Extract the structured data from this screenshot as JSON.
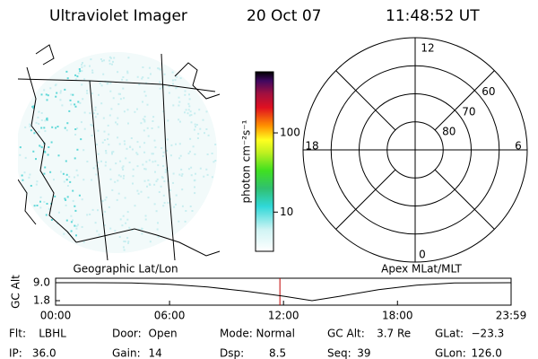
{
  "header": {
    "instrument": "Ultraviolet Imager",
    "date": "20 Oct 07",
    "time": "11:48:52 UT"
  },
  "colorbar": {
    "label": "photon cm⁻²s⁻¹",
    "log": true,
    "lim": [
      3.2,
      590
    ],
    "ticks": [
      10,
      100
    ]
  },
  "polar": {
    "rlim": [
      90,
      50
    ],
    "rings": [
      60,
      70,
      80
    ],
    "mlt_labels": [
      "12",
      "18",
      "6",
      "0"
    ]
  },
  "panel_labels": {
    "left": "Geographic Lat/Lon",
    "right": "Apex MLat/MLT"
  },
  "altitude": {
    "ylabel": "GC Alt",
    "x": [
      0,
      2,
      4,
      6,
      8,
      10,
      12,
      13.5,
      15,
      17,
      19,
      21,
      23.983
    ],
    "values": [
      9.0,
      9.0,
      8.9,
      8.4,
      7.3,
      5.6,
      3.6,
      1.8,
      3.6,
      6.2,
      8.0,
      8.9,
      9.0
    ],
    "xlim": [
      0,
      23.983
    ],
    "xticks": [
      {
        "value": 0,
        "label": "00:00"
      },
      {
        "value": 6,
        "label": "06:00"
      },
      {
        "value": 12,
        "label": "12:00"
      },
      {
        "value": 18,
        "label": "18:00"
      },
      {
        "value": 23.983,
        "label": "23:59"
      }
    ],
    "ylim": [
      1.8,
      9.0
    ],
    "yticks": [
      {
        "value": 9,
        "label": "9.0"
      },
      1.8
    ],
    "marker_x": 11.81,
    "marker_color": "#c00000",
    "color": "#000000"
  },
  "status": [
    [
      {
        "label": "Flt:",
        "value": "LBHL"
      },
      {
        "label": "Door:",
        "value": "Open"
      },
      {
        "label": "Mode:",
        "value": "Normal"
      },
      {
        "label": "GC Alt:",
        "value": "3.7 Re"
      },
      {
        "label": "GLat:",
        "value": "−23.3"
      }
    ],
    [
      {
        "label": "IP:",
        "value": "36.0"
      },
      {
        "label": "Gain:",
        "value": "14"
      },
      {
        "label": "Dsp:",
        "value": "8.5"
      },
      {
        "label": "Seq:",
        "value": "39"
      },
      {
        "label": "GLon:",
        "value": "126.0"
      }
    ]
  ]
}
